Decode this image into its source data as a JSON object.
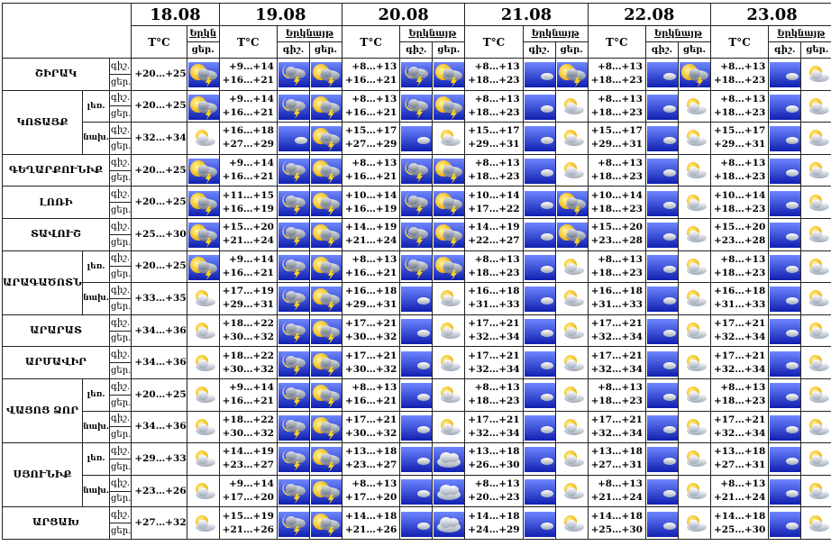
{
  "lbl": {
    "t": "T°C",
    "sky": "Երկնայթ",
    "sky_short": "Երկն",
    "day": "ցեր.",
    "night": "գիշ."
  },
  "dates": [
    "18.08",
    "19.08",
    "20.08",
    "21.08",
    "22.08",
    "23.08"
  ],
  "regions": [
    {
      "name": "ՇԻՐԱԿ",
      "rows": [
        {
          "sub": "",
          "d18": "+20…+25",
          "i18": "sunstorm",
          "days": [
            {
              "t": [
                "+9…+14",
                "+16…+21"
              ],
              "i": [
                "nightstorm",
                "sunstorm"
              ]
            },
            {
              "t": [
                "+8…+13",
                "+16…+21"
              ],
              "i": [
                "nightstorm",
                "sunstorm"
              ]
            },
            {
              "t": [
                "+8…+13",
                "+18…+23"
              ],
              "i": [
                "moon",
                "sunstorm"
              ]
            },
            {
              "t": [
                "+8…+13",
                "+18…+23"
              ],
              "i": [
                "moon",
                "sunstorm"
              ]
            },
            {
              "t": [
                "+8…+13",
                "+18…+23"
              ],
              "i": [
                "moon",
                "suncloud"
              ]
            }
          ]
        }
      ]
    },
    {
      "name": "ԿՈՏԱՅՔ",
      "rows": [
        {
          "sub": "լեռ.",
          "d18": "+20…+25",
          "i18": "sunstorm",
          "days": [
            {
              "t": [
                "+9…+14",
                "+16…+21"
              ],
              "i": [
                "nightstorm",
                "sunstorm"
              ]
            },
            {
              "t": [
                "+8…+13",
                "+16…+21"
              ],
              "i": [
                "nightstorm",
                "sunstorm"
              ]
            },
            {
              "t": [
                "+8…+13",
                "+18…+23"
              ],
              "i": [
                "moon",
                "suncloud"
              ]
            },
            {
              "t": [
                "+8…+13",
                "+18…+23"
              ],
              "i": [
                "moon",
                "suncloud"
              ]
            },
            {
              "t": [
                "+8…+13",
                "+18…+23"
              ],
              "i": [
                "moon",
                "suncloud"
              ]
            }
          ]
        },
        {
          "sub": "նախ.",
          "d18": "+32…+34",
          "i18": "suncloud",
          "days": [
            {
              "t": [
                "+16…+18",
                "+27…+29"
              ],
              "i": [
                "moon",
                "sunstorm"
              ]
            },
            {
              "t": [
                "+15…+17",
                "+27…+29"
              ],
              "i": [
                "moon",
                "suncloud"
              ]
            },
            {
              "t": [
                "+15…+17",
                "+29…+31"
              ],
              "i": [
                "moon",
                "suncloud"
              ]
            },
            {
              "t": [
                "+15…+17",
                "+29…+31"
              ],
              "i": [
                "moon",
                "suncloud"
              ]
            },
            {
              "t": [
                "+15…+17",
                "+29…+31"
              ],
              "i": [
                "moon",
                "suncloud"
              ]
            }
          ]
        }
      ]
    },
    {
      "name": "ԳԵՂԱՐՔՈՒՆԻՔ",
      "rows": [
        {
          "sub": "",
          "d18": "+20…+25",
          "i18": "sunstorm",
          "days": [
            {
              "t": [
                "+9…+14",
                "+16…+21"
              ],
              "i": [
                "nightstorm",
                "sunstorm"
              ]
            },
            {
              "t": [
                "+8…+13",
                "+16…+21"
              ],
              "i": [
                "nightstorm",
                "sunstorm"
              ]
            },
            {
              "t": [
                "+8…+13",
                "+18…+23"
              ],
              "i": [
                "moon",
                "suncloud"
              ]
            },
            {
              "t": [
                "+8…+13",
                "+18…+23"
              ],
              "i": [
                "moon",
                "suncloud"
              ]
            },
            {
              "t": [
                "+8…+13",
                "+18…+23"
              ],
              "i": [
                "moon",
                "suncloud"
              ]
            }
          ]
        }
      ]
    },
    {
      "name": "ԼՈՌԻ",
      "rows": [
        {
          "sub": "",
          "d18": "+20…+25",
          "i18": "sunstorm",
          "days": [
            {
              "t": [
                "+11…+15",
                "+16…+19"
              ],
              "i": [
                "nightstorm",
                "sunstorm"
              ]
            },
            {
              "t": [
                "+10…+14",
                "+16…+19"
              ],
              "i": [
                "nightstorm",
                "sunstorm"
              ]
            },
            {
              "t": [
                "+10…+14",
                "+17…+22"
              ],
              "i": [
                "moon",
                "sunstorm"
              ]
            },
            {
              "t": [
                "+10…+14",
                "+18…+23"
              ],
              "i": [
                "moon",
                "suncloud"
              ]
            },
            {
              "t": [
                "+10…+14",
                "+18…+23"
              ],
              "i": [
                "moon",
                "suncloud"
              ]
            }
          ]
        }
      ]
    },
    {
      "name": "ՏԱՎՈՒՇ",
      "rows": [
        {
          "sub": "",
          "d18": "+25…+30",
          "i18": "sunstorm",
          "days": [
            {
              "t": [
                "+15…+20",
                "+21…+24"
              ],
              "i": [
                "nightstorm",
                "sunstorm"
              ]
            },
            {
              "t": [
                "+14…+19",
                "+21…+24"
              ],
              "i": [
                "nightstorm",
                "sunstorm"
              ]
            },
            {
              "t": [
                "+14…+19",
                "+22…+27"
              ],
              "i": [
                "moon",
                "sunstorm"
              ]
            },
            {
              "t": [
                "+15…+20",
                "+23…+28"
              ],
              "i": [
                "moon",
                "suncloud"
              ]
            },
            {
              "t": [
                "+15…+20",
                "+23…+28"
              ],
              "i": [
                "moon",
                "suncloud"
              ]
            }
          ]
        }
      ]
    },
    {
      "name": "ԱՐԱԳԱԾՈՏՆ",
      "rows": [
        {
          "sub": "լեռ.",
          "d18": "+20…+25",
          "i18": "sunstorm",
          "days": [
            {
              "t": [
                "+9…+14",
                "+16…+21"
              ],
              "i": [
                "nightstorm",
                "sunstorm"
              ]
            },
            {
              "t": [
                "+8…+13",
                "+16…+21"
              ],
              "i": [
                "nightstorm",
                "sunstorm"
              ]
            },
            {
              "t": [
                "+8…+13",
                "+18…+23"
              ],
              "i": [
                "moon",
                "suncloud"
              ]
            },
            {
              "t": [
                "+8…+13",
                "+18…+23"
              ],
              "i": [
                "moon",
                "suncloud"
              ]
            },
            {
              "t": [
                "+8…+13",
                "+18…+23"
              ],
              "i": [
                "moon",
                "suncloud"
              ]
            }
          ]
        },
        {
          "sub": "նախ.",
          "d18": "+33…+35",
          "i18": "suncloud",
          "days": [
            {
              "t": [
                "+17…+19",
                "+29…+31"
              ],
              "i": [
                "nightstorm",
                "sunstorm"
              ]
            },
            {
              "t": [
                "+16…+18",
                "+29…+31"
              ],
              "i": [
                "moon",
                "suncloud"
              ]
            },
            {
              "t": [
                "+16…+18",
                "+31…+33"
              ],
              "i": [
                "moon",
                "suncloud"
              ]
            },
            {
              "t": [
                "+16…+18",
                "+31…+33"
              ],
              "i": [
                "moon",
                "suncloud"
              ]
            },
            {
              "t": [
                "+16…+18",
                "+31…+33"
              ],
              "i": [
                "moon",
                "suncloud"
              ]
            }
          ]
        }
      ]
    },
    {
      "name": "ԱՐԱՐԱՏ",
      "rows": [
        {
          "sub": "",
          "d18": "+34…+36",
          "i18": "suncloud",
          "days": [
            {
              "t": [
                "+18…+22",
                "+30…+32"
              ],
              "i": [
                "nightstorm",
                "sunstorm"
              ]
            },
            {
              "t": [
                "+17…+21",
                "+30…+32"
              ],
              "i": [
                "moon",
                "suncloud"
              ]
            },
            {
              "t": [
                "+17…+21",
                "+32…+34"
              ],
              "i": [
                "moon",
                "suncloud"
              ]
            },
            {
              "t": [
                "+17…+21",
                "+32…+34"
              ],
              "i": [
                "moon",
                "suncloud"
              ]
            },
            {
              "t": [
                "+17…+21",
                "+32…+34"
              ],
              "i": [
                "moon",
                "suncloud"
              ]
            }
          ]
        }
      ]
    },
    {
      "name": "ԱՐՄԱՎԻՐ",
      "rows": [
        {
          "sub": "",
          "d18": "+34…+36",
          "i18": "suncloud",
          "days": [
            {
              "t": [
                "+18…+22",
                "+30…+32"
              ],
              "i": [
                "nightstorm",
                "sunstorm"
              ]
            },
            {
              "t": [
                "+17…+21",
                "+30…+32"
              ],
              "i": [
                "moon",
                "suncloud"
              ]
            },
            {
              "t": [
                "+17…+21",
                "+32…+34"
              ],
              "i": [
                "moon",
                "suncloud"
              ]
            },
            {
              "t": [
                "+17…+21",
                "+32…+34"
              ],
              "i": [
                "moon",
                "suncloud"
              ]
            },
            {
              "t": [
                "+17…+21",
                "+32…+34"
              ],
              "i": [
                "moon",
                "suncloud"
              ]
            }
          ]
        }
      ]
    },
    {
      "name": "ՎԱՅՈՑ ՁՈՐ",
      "rows": [
        {
          "sub": "լեռ.",
          "d18": "+20…+25",
          "i18": "suncloud",
          "days": [
            {
              "t": [
                "+9…+14",
                "+16…+21"
              ],
              "i": [
                "nightstorm",
                "sunstorm"
              ]
            },
            {
              "t": [
                "+8…+13",
                "+16…+21"
              ],
              "i": [
                "moon",
                "suncloud"
              ]
            },
            {
              "t": [
                "+8…+13",
                "+18…+23"
              ],
              "i": [
                "moon",
                "suncloud"
              ]
            },
            {
              "t": [
                "+8…+13",
                "+18…+23"
              ],
              "i": [
                "moon",
                "suncloud"
              ]
            },
            {
              "t": [
                "+8…+13",
                "+18…+23"
              ],
              "i": [
                "moon",
                "suncloud"
              ]
            }
          ]
        },
        {
          "sub": "նախ.",
          "d18": "+34…+36",
          "i18": "suncloud",
          "days": [
            {
              "t": [
                "+18…+22",
                "+30…+32"
              ],
              "i": [
                "nightstorm",
                "sunstorm"
              ]
            },
            {
              "t": [
                "+17…+21",
                "+30…+32"
              ],
              "i": [
                "moon",
                "suncloud"
              ]
            },
            {
              "t": [
                "+17…+21",
                "+32…+34"
              ],
              "i": [
                "moon",
                "suncloud"
              ]
            },
            {
              "t": [
                "+17…+21",
                "+32…+34"
              ],
              "i": [
                "moon",
                "suncloud"
              ]
            },
            {
              "t": [
                "+17…+21",
                "+32…+34"
              ],
              "i": [
                "moon",
                "suncloud"
              ]
            }
          ]
        }
      ]
    },
    {
      "name": "ՍՅՈՒՆԻՔ",
      "rows": [
        {
          "sub": "լեռ.",
          "d18": "+29…+33",
          "i18": "suncloud",
          "days": [
            {
              "t": [
                "+14…+19",
                "+23…+27"
              ],
              "i": [
                "nightstorm",
                "sunstorm"
              ]
            },
            {
              "t": [
                "+13…+18",
                "+23…+27"
              ],
              "i": [
                "moon",
                "cloud"
              ]
            },
            {
              "t": [
                "+13…+18",
                "+26…+30"
              ],
              "i": [
                "moon",
                "suncloud"
              ]
            },
            {
              "t": [
                "+13…+18",
                "+27…+31"
              ],
              "i": [
                "moon",
                "suncloud"
              ]
            },
            {
              "t": [
                "+13…+18",
                "+27…+31"
              ],
              "i": [
                "moon",
                "suncloud"
              ]
            }
          ]
        },
        {
          "sub": "նախ.",
          "d18": "+23…+26",
          "i18": "suncloud",
          "days": [
            {
              "t": [
                "+9…+14",
                "+17…+20"
              ],
              "i": [
                "nightstorm",
                "sunstorm"
              ]
            },
            {
              "t": [
                "+8…+13",
                "+17…+20"
              ],
              "i": [
                "moon",
                "cloud"
              ]
            },
            {
              "t": [
                "+8…+13",
                "+20…+23"
              ],
              "i": [
                "moon",
                "suncloud"
              ]
            },
            {
              "t": [
                "+8…+13",
                "+21…+24"
              ],
              "i": [
                "moon",
                "suncloud"
              ]
            },
            {
              "t": [
                "+8…+13",
                "+21…+24"
              ],
              "i": [
                "moon",
                "suncloud"
              ]
            }
          ]
        }
      ]
    },
    {
      "name": "ԱՐՑԱԽ",
      "rows": [
        {
          "sub": "",
          "d18": "+27…+32",
          "i18": "suncloud",
          "days": [
            {
              "t": [
                "+15…+19",
                "+21…+26"
              ],
              "i": [
                "nightstorm",
                "sunstorm"
              ]
            },
            {
              "t": [
                "+14…+18",
                "+21…+26"
              ],
              "i": [
                "moon",
                "cloud"
              ]
            },
            {
              "t": [
                "+14…+18",
                "+24…+29"
              ],
              "i": [
                "moon",
                "suncloud"
              ]
            },
            {
              "t": [
                "+14…+18",
                "+25…+30"
              ],
              "i": [
                "moon",
                "suncloud"
              ]
            },
            {
              "t": [
                "+14…+18",
                "+25…+30"
              ],
              "i": [
                "moon",
                "suncloud"
              ]
            }
          ]
        }
      ]
    }
  ]
}
